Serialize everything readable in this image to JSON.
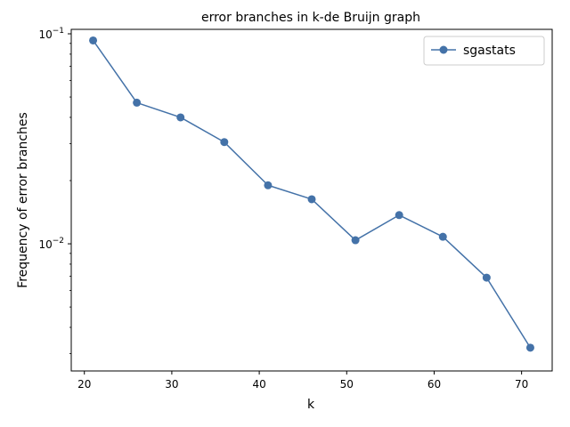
{
  "chart_data": {
    "type": "line",
    "title": "error branches in k-de Bruijn graph",
    "xlabel": "k",
    "ylabel": "Frequency of error branches",
    "yscale": "log",
    "xlim": [
      18.5,
      73.5
    ],
    "ylim": [
      0.00248,
      0.105
    ],
    "grid": false,
    "legend_position": "top-right",
    "x_ticks": [
      20,
      30,
      40,
      50,
      60,
      70
    ],
    "x_tick_labels": [
      "20",
      "30",
      "40",
      "50",
      "60",
      "70"
    ],
    "y_ticks": [
      0.01,
      0.1
    ],
    "y_tick_labels": [
      {
        "base": "10",
        "exp": "−2"
      },
      {
        "base": "10",
        "exp": "−1"
      }
    ],
    "series": [
      {
        "name": "sgastats",
        "color": "#4472a8",
        "marker": "circle",
        "x": [
          21,
          26,
          31,
          36,
          41,
          46,
          51,
          56,
          61,
          66,
          71
        ],
        "y": [
          0.093,
          0.047,
          0.04,
          0.0305,
          0.019,
          0.0163,
          0.0104,
          0.0137,
          0.0108,
          0.0069,
          0.0032
        ]
      }
    ]
  }
}
